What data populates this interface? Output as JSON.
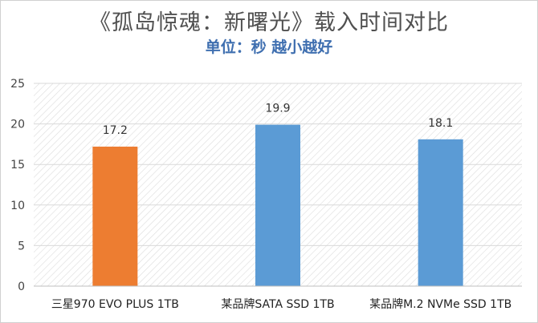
{
  "chart_data": {
    "type": "bar",
    "title": "《孤岛惊魂：新曙光》载入时间对比",
    "subtitle": "单位：秒 越小越好",
    "categories": [
      "三星970 EVO PLUS 1TB",
      "某品牌SATA SSD 1TB",
      "某品牌M.2 NVMe SSD 1TB"
    ],
    "values": [
      17.2,
      19.9,
      18.1
    ],
    "data_labels": [
      "17.2",
      "19.9",
      "18.1"
    ],
    "bar_colors": [
      "#ed7d31",
      "#5b9bd5",
      "#5b9bd5"
    ],
    "ylim": [
      0,
      25
    ],
    "yticks": [
      0,
      5,
      10,
      15,
      20,
      25
    ],
    "grid": true,
    "legend": "none",
    "background": "hatched"
  }
}
